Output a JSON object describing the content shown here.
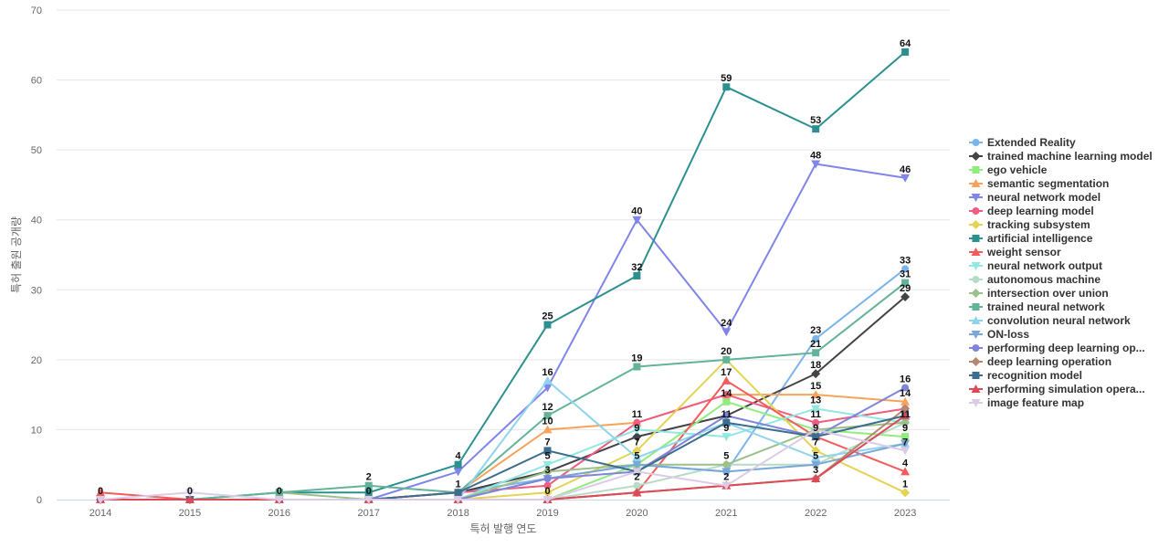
{
  "chart_data": {
    "type": "line",
    "xlabel": "특허 발행 연도",
    "ylabel": "특허 출원 공개량",
    "x": [
      "2014",
      "2015",
      "2016",
      "2017",
      "2018",
      "2019",
      "2020",
      "2021",
      "2022",
      "2023"
    ],
    "ylim": [
      0,
      70
    ],
    "yticks": [
      0,
      10,
      20,
      30,
      40,
      50,
      60,
      70
    ],
    "grid": true,
    "legend_position": "right",
    "series": [
      {
        "name": "Extended Reality",
        "color": "#7cb5ec",
        "marker": "circle",
        "values": [
          0,
          0,
          0,
          0,
          1,
          3,
          5,
          4,
          23,
          33
        ]
      },
      {
        "name": "trained machine learning model",
        "color": "#434348",
        "marker": "diamond",
        "values": [
          0,
          0,
          0,
          0,
          1,
          4,
          9,
          12,
          18,
          29
        ]
      },
      {
        "name": "ego vehicle",
        "color": "#90ed7d",
        "marker": "square",
        "values": [
          0,
          0,
          0,
          0,
          0,
          0,
          5,
          14,
          10,
          9
        ]
      },
      {
        "name": "semantic segmentation",
        "color": "#f7a35c",
        "marker": "triangle",
        "values": [
          0,
          0,
          0,
          0,
          1,
          10,
          11,
          15,
          15,
          14
        ]
      },
      {
        "name": "neural network model",
        "color": "#8085e9",
        "marker": "triangle-down",
        "values": [
          0,
          0,
          0,
          0,
          4,
          16,
          40,
          24,
          48,
          46
        ]
      },
      {
        "name": "deep learning model",
        "color": "#f15c80",
        "marker": "circle",
        "values": [
          0,
          0,
          0,
          0,
          1,
          2,
          11,
          15,
          11,
          13
        ]
      },
      {
        "name": "tracking subsystem",
        "color": "#e4d354",
        "marker": "diamond",
        "values": [
          0,
          0,
          0,
          0,
          0,
          1,
          7,
          20,
          7,
          1
        ]
      },
      {
        "name": "artificial intelligence",
        "color": "#2b908f",
        "marker": "square",
        "values": [
          0,
          0,
          1,
          1,
          5,
          25,
          32,
          59,
          53,
          64
        ]
      },
      {
        "name": "weight sensor",
        "color": "#f45b5b",
        "marker": "triangle",
        "values": [
          1,
          0,
          0,
          0,
          0,
          0,
          1,
          17,
          9,
          4
        ]
      },
      {
        "name": "neural network output",
        "color": "#91e8e1",
        "marker": "triangle-down",
        "values": [
          0,
          0,
          0,
          0,
          0,
          5,
          10,
          9,
          13,
          11
        ]
      },
      {
        "name": "autonomous machine",
        "color": "#b5dcc6",
        "marker": "circle",
        "values": [
          0,
          0,
          0,
          0,
          0,
          0,
          2,
          5,
          5,
          11
        ]
      },
      {
        "name": "intersection over union",
        "color": "#9cc08a",
        "marker": "diamond",
        "values": [
          0,
          0,
          1,
          0,
          0,
          4,
          5,
          5,
          10,
          11
        ]
      },
      {
        "name": "trained neural network",
        "color": "#62b39a",
        "marker": "square",
        "values": [
          0,
          0,
          1,
          2,
          1,
          12,
          19,
          20,
          21,
          31
        ]
      },
      {
        "name": "convolution neural network",
        "color": "#8fd4ec",
        "marker": "triangle",
        "values": [
          0,
          0,
          0,
          0,
          0,
          17,
          6,
          11,
          6,
          8
        ]
      },
      {
        "name": "ON-loss",
        "color": "#7aa7d8",
        "marker": "triangle-down",
        "values": [
          0,
          0,
          0,
          0,
          0,
          3,
          5,
          4,
          5,
          8
        ]
      },
      {
        "name": "performing deep learning op...",
        "color": "#7f86d9",
        "marker": "circle",
        "values": [
          0,
          0,
          0,
          0,
          0,
          3,
          4,
          12,
          9,
          16
        ]
      },
      {
        "name": "deep learning operation",
        "color": "#b5876e",
        "marker": "diamond",
        "values": [
          0,
          0,
          0,
          0,
          0,
          0,
          1,
          2,
          3,
          13
        ]
      },
      {
        "name": "recognition model",
        "color": "#3d6d8e",
        "marker": "square",
        "values": [
          0,
          0,
          0,
          0,
          1,
          7,
          4,
          11,
          9,
          12
        ]
      },
      {
        "name": "performing simulation opera...",
        "color": "#dc4a58",
        "marker": "triangle",
        "values": [
          0,
          0,
          0,
          0,
          0,
          0,
          1,
          2,
          3,
          12
        ]
      },
      {
        "name": "image feature map",
        "color": "#dccbe6",
        "marker": "triangle-down",
        "values": [
          0,
          1,
          0,
          0,
          0,
          0,
          4,
          2,
          10,
          7
        ]
      }
    ],
    "data_labels": [
      {
        "x": "2014",
        "y": 0,
        "text": "0"
      },
      {
        "x": "2015",
        "y": 0,
        "text": "0"
      },
      {
        "x": "2016",
        "y": 0,
        "text": "0"
      },
      {
        "x": "2017",
        "y": 2,
        "text": "2"
      },
      {
        "x": "2017",
        "y": 0,
        "text": "0"
      },
      {
        "x": "2018",
        "y": 5,
        "text": "4"
      },
      {
        "x": "2018",
        "y": 1,
        "text": "1"
      },
      {
        "x": "2019",
        "y": 25,
        "text": "25"
      },
      {
        "x": "2019",
        "y": 17,
        "text": "16"
      },
      {
        "x": "2019",
        "y": 12,
        "text": "12"
      },
      {
        "x": "2019",
        "y": 10,
        "text": "10"
      },
      {
        "x": "2019",
        "y": 7,
        "text": "7"
      },
      {
        "x": "2019",
        "y": 5,
        "text": "5"
      },
      {
        "x": "2019",
        "y": 3,
        "text": "3"
      },
      {
        "x": "2019",
        "y": 0,
        "text": "0"
      },
      {
        "x": "2020",
        "y": 40,
        "text": "40"
      },
      {
        "x": "2020",
        "y": 32,
        "text": "32"
      },
      {
        "x": "2020",
        "y": 19,
        "text": "19"
      },
      {
        "x": "2020",
        "y": 11,
        "text": "11"
      },
      {
        "x": "2020",
        "y": 9,
        "text": "9"
      },
      {
        "x": "2020",
        "y": 7,
        "text": "7"
      },
      {
        "x": "2020",
        "y": 5,
        "text": "5"
      },
      {
        "x": "2020",
        "y": 2,
        "text": "2"
      },
      {
        "x": "2021",
        "y": 59,
        "text": "59"
      },
      {
        "x": "2021",
        "y": 24,
        "text": "24"
      },
      {
        "x": "2021",
        "y": 20,
        "text": "20"
      },
      {
        "x": "2021",
        "y": 17,
        "text": "17"
      },
      {
        "x": "2021",
        "y": 14,
        "text": "14"
      },
      {
        "x": "2021",
        "y": 11,
        "text": "11"
      },
      {
        "x": "2021",
        "y": 9,
        "text": "9"
      },
      {
        "x": "2021",
        "y": 5,
        "text": "5"
      },
      {
        "x": "2021",
        "y": 2,
        "text": "2"
      },
      {
        "x": "2022",
        "y": 53,
        "text": "53"
      },
      {
        "x": "2022",
        "y": 48,
        "text": "48"
      },
      {
        "x": "2022",
        "y": 23,
        "text": "23"
      },
      {
        "x": "2022",
        "y": 21,
        "text": "21"
      },
      {
        "x": "2022",
        "y": 18,
        "text": "18"
      },
      {
        "x": "2022",
        "y": 15,
        "text": "15"
      },
      {
        "x": "2022",
        "y": 13,
        "text": "13"
      },
      {
        "x": "2022",
        "y": 11,
        "text": "11"
      },
      {
        "x": "2022",
        "y": 9,
        "text": "9"
      },
      {
        "x": "2022",
        "y": 7,
        "text": "7"
      },
      {
        "x": "2022",
        "y": 5,
        "text": "5"
      },
      {
        "x": "2022",
        "y": 3,
        "text": "3"
      },
      {
        "x": "2023",
        "y": 64,
        "text": "64"
      },
      {
        "x": "2023",
        "y": 46,
        "text": "46"
      },
      {
        "x": "2023",
        "y": 33,
        "text": "33"
      },
      {
        "x": "2023",
        "y": 31,
        "text": "31"
      },
      {
        "x": "2023",
        "y": 29,
        "text": "29"
      },
      {
        "x": "2023",
        "y": 16,
        "text": "16"
      },
      {
        "x": "2023",
        "y": 14,
        "text": "14"
      },
      {
        "x": "2023",
        "y": 11,
        "text": "11"
      },
      {
        "x": "2023",
        "y": 9,
        "text": "9"
      },
      {
        "x": "2023",
        "y": 7,
        "text": "7"
      },
      {
        "x": "2023",
        "y": 4,
        "text": "4"
      },
      {
        "x": "2023",
        "y": 1,
        "text": "1"
      }
    ]
  }
}
